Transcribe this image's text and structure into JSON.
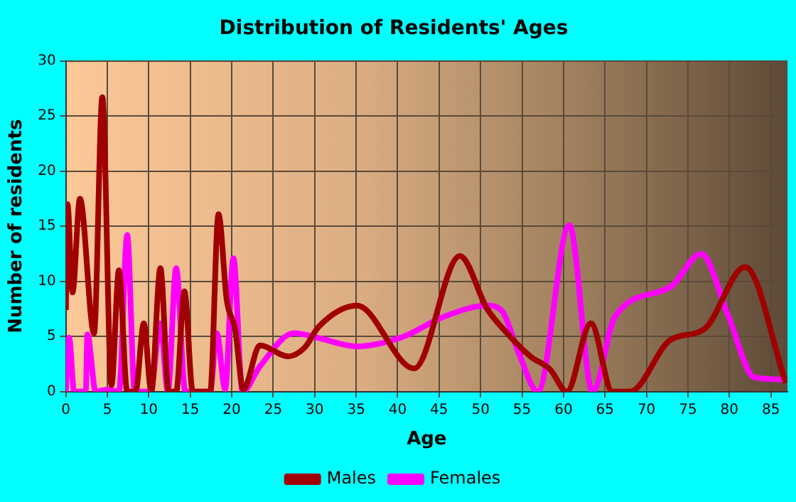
{
  "chart_data": {
    "type": "line",
    "title": "Distribution of Residents' Ages",
    "xlabel": "Age",
    "ylabel": "Number of residents",
    "xlim": [
      0,
      87
    ],
    "xticks": [
      0,
      5,
      10,
      15,
      20,
      25,
      30,
      35,
      40,
      45,
      50,
      55,
      60,
      65,
      70,
      75,
      80,
      85
    ],
    "ylim": [
      0,
      30
    ],
    "yticks": [
      0,
      5,
      10,
      15,
      20,
      25,
      30
    ],
    "grid": true,
    "legend": "bottom",
    "marker": "none",
    "series": [
      {
        "name": "Males",
        "color": "#a00000",
        "x": [
          0,
          0.2,
          0.8,
          1.7,
          3.4,
          4.4,
          5.5,
          6.4,
          7.4,
          8.4,
          9.4,
          10.3,
          11.4,
          12.4,
          13.3,
          14.3,
          15.3,
          17.4,
          18.4,
          19.4,
          20.4,
          21.4,
          23.4,
          26.8,
          28.8,
          30.5,
          35.1,
          42,
          47.5,
          50.8,
          53.2,
          56,
          58.4,
          60.4,
          63.3,
          65.9,
          68,
          72.9,
          77,
          81.9,
          86.8
        ],
        "values": [
          7.4,
          17,
          9,
          17.5,
          5.3,
          26.7,
          0.6,
          11,
          0,
          0,
          6.2,
          0,
          11.2,
          0,
          0,
          9.1,
          0,
          0,
          16.1,
          8.3,
          5.7,
          0.2,
          4.2,
          3.2,
          4,
          5.9,
          7.8,
          2.1,
          12.3,
          7.5,
          5.3,
          3.2,
          2,
          0,
          6.2,
          0,
          0,
          4.7,
          5.7,
          11.3,
          0.8
        ]
      },
      {
        "name": "Females",
        "color": "#ff00ff",
        "x": [
          0,
          0.4,
          1,
          2.4,
          2.6,
          3.6,
          5,
          6.4,
          7.4,
          8.3,
          10.2,
          11.4,
          12.3,
          13.3,
          14.4,
          17.4,
          18.2,
          19.2,
          20.2,
          21.3,
          23.4,
          27.5,
          30.3,
          35.1,
          40.4,
          45.6,
          50.8,
          52.6,
          54.6,
          56.9,
          60.7,
          63.5,
          66.2,
          72.9,
          76.6,
          79.8,
          83,
          86.8
        ],
        "values": [
          0,
          4.9,
          0,
          0,
          5.2,
          0,
          0.2,
          0,
          14.2,
          0,
          0,
          6.2,
          0,
          11.2,
          0,
          0,
          5.3,
          0.2,
          12.1,
          0,
          2.3,
          5.3,
          4.9,
          4.1,
          4.9,
          6.8,
          7.8,
          7.3,
          3.5,
          0,
          15.1,
          0,
          6.8,
          9.5,
          12.5,
          7,
          1.3,
          1.1
        ]
      }
    ]
  }
}
